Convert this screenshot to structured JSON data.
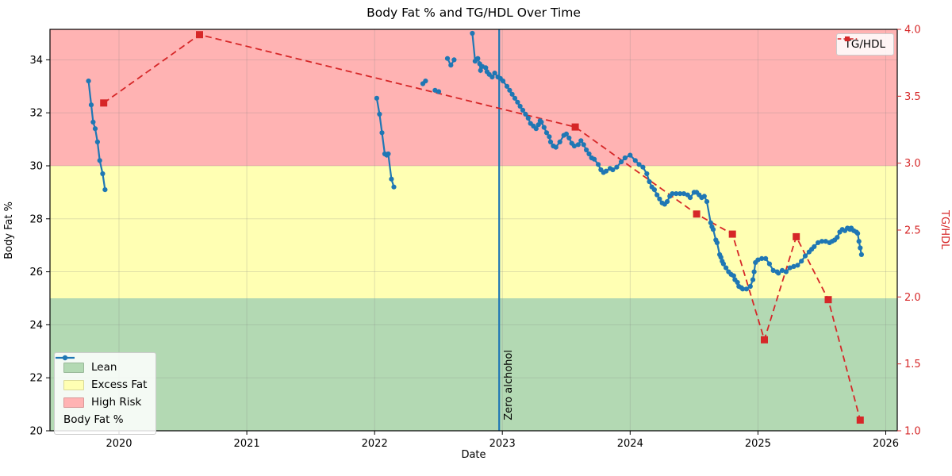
{
  "chart_data": {
    "type": "line",
    "title": "Body Fat % and TG/HDL Over Time",
    "xlabel": "Date",
    "ylabel_left": "Body Fat %",
    "ylabel_right": "TG/HDL",
    "xlim": [
      2019.46,
      2026.09
    ],
    "ylim_left": [
      20,
      35.15
    ],
    "ylim_right": [
      1.0,
      4.0
    ],
    "x_ticks": [
      2020,
      2021,
      2022,
      2023,
      2024,
      2025,
      2026
    ],
    "y_left_ticks": [
      20,
      22,
      24,
      26,
      28,
      30,
      32,
      34
    ],
    "y_right_ticks": [
      "1.0",
      "1.5",
      "2.0",
      "2.5",
      "3.0",
      "3.5",
      "4.0"
    ],
    "grid": true,
    "bands": [
      {
        "label": "Lean",
        "from": 20,
        "to": 25,
        "color": "#b3d9b3"
      },
      {
        "label": "Excess Fat",
        "from": 25,
        "to": 30,
        "color": "#ffffb3"
      },
      {
        "label": "High Risk",
        "from": 30,
        "to": 35.15,
        "color": "#ffb3b3"
      }
    ],
    "annotations": [
      {
        "type": "vline",
        "x": 2022.975,
        "color": "#1f77b4",
        "text": "Zero alchohol"
      }
    ],
    "series": [
      {
        "name": "Body Fat %",
        "axis": "left",
        "color": "#1f77b4",
        "style": "solid",
        "marker": "circle",
        "segments": [
          [
            [
              2019.762,
              33.2
            ],
            [
              2019.783,
              32.3
            ],
            [
              2019.798,
              31.65
            ],
            [
              2019.814,
              31.4
            ],
            [
              2019.832,
              30.9
            ],
            [
              2019.849,
              30.2
            ],
            [
              2019.872,
              29.7
            ],
            [
              2019.891,
              29.1
            ]
          ],
          [
            [
              2022.017,
              32.55
            ],
            [
              2022.039,
              31.95
            ],
            [
              2022.058,
              31.25
            ],
            [
              2022.08,
              30.45
            ],
            [
              2022.095,
              30.4
            ],
            [
              2022.107,
              30.45
            ],
            [
              2022.132,
              29.5
            ],
            [
              2022.151,
              29.2
            ]
          ],
          [
            [
              2022.378,
              33.1
            ],
            [
              2022.399,
              33.2
            ]
          ],
          [
            [
              2022.473,
              32.85
            ],
            [
              2022.502,
              32.8
            ]
          ],
          [
            [
              2022.57,
              34.05
            ],
            [
              2022.597,
              33.8
            ],
            [
              2022.622,
              34.0
            ]
          ],
          [
            [
              2022.765,
              35.0
            ],
            [
              2022.787,
              33.95
            ],
            [
              2022.808,
              34.05
            ],
            [
              2022.823,
              33.85
            ],
            [
              2022.829,
              33.6
            ],
            [
              2022.843,
              33.75
            ],
            [
              2022.87,
              33.7
            ],
            [
              2022.88,
              33.55
            ],
            [
              2022.897,
              33.45
            ],
            [
              2022.92,
              33.35
            ],
            [
              2022.94,
              33.5
            ],
            [
              2022.965,
              33.35
            ],
            [
              2022.984,
              33.3
            ],
            [
              2023.005,
              33.2
            ],
            [
              2023.036,
              33.0
            ],
            [
              2023.057,
              32.85
            ],
            [
              2023.077,
              32.7
            ],
            [
              2023.098,
              32.55
            ],
            [
              2023.119,
              32.4
            ],
            [
              2023.139,
              32.25
            ],
            [
              2023.16,
              32.1
            ],
            [
              2023.181,
              31.95
            ],
            [
              2023.202,
              31.8
            ],
            [
              2023.22,
              31.6
            ],
            [
              2023.243,
              31.5
            ],
            [
              2023.264,
              31.4
            ],
            [
              2023.282,
              31.55
            ],
            [
              2023.295,
              31.7
            ],
            [
              2023.305,
              31.65
            ],
            [
              2023.326,
              31.45
            ],
            [
              2023.346,
              31.25
            ],
            [
              2023.367,
              31.1
            ],
            [
              2023.377,
              30.9
            ],
            [
              2023.398,
              30.75
            ],
            [
              2023.419,
              30.7
            ],
            [
              2023.45,
              30.9
            ],
            [
              2023.481,
              31.15
            ],
            [
              2023.501,
              31.2
            ],
            [
              2023.522,
              31.05
            ],
            [
              2023.543,
              30.85
            ],
            [
              2023.563,
              30.75
            ],
            [
              2023.594,
              30.8
            ],
            [
              2023.615,
              30.95
            ],
            [
              2023.636,
              30.8
            ],
            [
              2023.657,
              30.6
            ],
            [
              2023.678,
              30.45
            ],
            [
              2023.698,
              30.3
            ],
            [
              2023.719,
              30.25
            ],
            [
              2023.75,
              30.05
            ],
            [
              2023.771,
              29.85
            ],
            [
              2023.791,
              29.75
            ],
            [
              2023.812,
              29.8
            ],
            [
              2023.843,
              29.9
            ],
            [
              2023.864,
              29.85
            ],
            [
              2023.895,
              29.95
            ],
            [
              2023.93,
              30.15
            ],
            [
              2023.96,
              30.3
            ],
            [
              2024.0,
              30.4
            ],
            [
              2024.04,
              30.2
            ],
            [
              2024.07,
              30.05
            ],
            [
              2024.1,
              29.95
            ],
            [
              2024.13,
              29.7
            ],
            [
              2024.15,
              29.4
            ],
            [
              2024.17,
              29.2
            ],
            [
              2024.19,
              29.1
            ],
            [
              2024.21,
              28.9
            ],
            [
              2024.23,
              28.75
            ],
            [
              2024.25,
              28.6
            ],
            [
              2024.27,
              28.55
            ],
            [
              2024.29,
              28.65
            ],
            [
              2024.31,
              28.85
            ],
            [
              2024.33,
              28.95
            ],
            [
              2024.36,
              28.95
            ],
            [
              2024.39,
              28.95
            ],
            [
              2024.42,
              28.95
            ],
            [
              2024.45,
              28.9
            ],
            [
              2024.47,
              28.8
            ],
            [
              2024.5,
              29.0
            ],
            [
              2024.52,
              29.0
            ],
            [
              2024.54,
              28.9
            ],
            [
              2024.56,
              28.8
            ],
            [
              2024.58,
              28.85
            ],
            [
              2024.6,
              28.65
            ],
            [
              2024.63,
              27.85
            ],
            [
              2024.64,
              27.7
            ],
            [
              2024.65,
              27.6
            ],
            [
              2024.67,
              27.2
            ],
            [
              2024.68,
              27.1
            ],
            [
              2024.7,
              26.65
            ],
            [
              2024.71,
              26.55
            ],
            [
              2024.72,
              26.4
            ],
            [
              2024.73,
              26.3
            ],
            [
              2024.75,
              26.15
            ],
            [
              2024.77,
              26.0
            ],
            [
              2024.79,
              25.9
            ],
            [
              2024.81,
              25.85
            ],
            [
              2024.82,
              25.7
            ],
            [
              2024.84,
              25.6
            ],
            [
              2024.85,
              25.45
            ],
            [
              2024.87,
              25.4
            ],
            [
              2024.88,
              25.35
            ],
            [
              2024.91,
              25.35
            ],
            [
              2024.94,
              25.45
            ],
            [
              2024.96,
              25.7
            ],
            [
              2024.97,
              26.0
            ],
            [
              2024.98,
              26.35
            ],
            [
              2025.0,
              26.45
            ],
            [
              2025.03,
              26.5
            ],
            [
              2025.06,
              26.5
            ],
            [
              2025.09,
              26.3
            ],
            [
              2025.12,
              26.05
            ],
            [
              2025.15,
              26.0
            ],
            [
              2025.16,
              25.95
            ],
            [
              2025.19,
              26.05
            ],
            [
              2025.22,
              26.0
            ],
            [
              2025.25,
              26.15
            ],
            [
              2025.28,
              26.2
            ],
            [
              2025.31,
              26.25
            ],
            [
              2025.34,
              26.4
            ],
            [
              2025.37,
              26.6
            ],
            [
              2025.4,
              26.75
            ],
            [
              2025.42,
              26.85
            ],
            [
              2025.44,
              26.95
            ],
            [
              2025.47,
              27.1
            ],
            [
              2025.5,
              27.15
            ],
            [
              2025.53,
              27.15
            ],
            [
              2025.56,
              27.1
            ],
            [
              2025.58,
              27.15
            ],
            [
              2025.6,
              27.2
            ],
            [
              2025.62,
              27.3
            ],
            [
              2025.64,
              27.5
            ],
            [
              2025.66,
              27.6
            ],
            [
              2025.68,
              27.55
            ],
            [
              2025.7,
              27.65
            ],
            [
              2025.72,
              27.6
            ],
            [
              2025.73,
              27.65
            ],
            [
              2025.75,
              27.55
            ],
            [
              2025.77,
              27.5
            ],
            [
              2025.78,
              27.45
            ],
            [
              2025.79,
              27.15
            ],
            [
              2025.8,
              26.9
            ],
            [
              2025.81,
              26.65
            ]
          ]
        ]
      },
      {
        "name": "TG/HDL",
        "axis": "right",
        "color": "#d62728",
        "style": "dashed",
        "marker": "square",
        "points": [
          [
            2019.88,
            3.45
          ],
          [
            2020.63,
            3.96
          ],
          [
            2023.57,
            3.27
          ],
          [
            2024.52,
            2.62
          ],
          [
            2024.8,
            2.47
          ],
          [
            2025.05,
            1.68
          ],
          [
            2025.3,
            2.45
          ],
          [
            2025.55,
            1.98
          ],
          [
            2025.8,
            1.08
          ]
        ]
      }
    ]
  },
  "legend_top_right": {
    "items": [
      {
        "label": "TG/HDL"
      }
    ]
  },
  "legend_bottom_left": {
    "items": [
      {
        "label": "Lean"
      },
      {
        "label": "Excess Fat"
      },
      {
        "label": "High Risk"
      },
      {
        "label": "Body Fat %"
      }
    ]
  }
}
